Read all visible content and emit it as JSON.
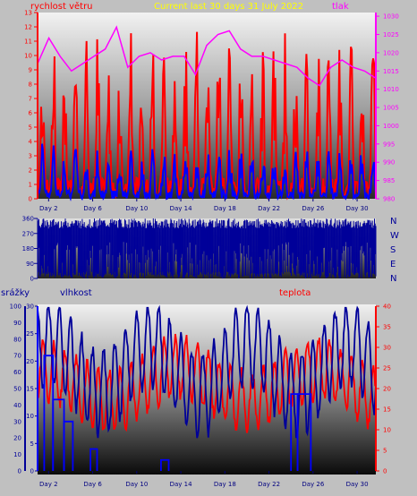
{
  "chart_data": [
    {
      "type": "line",
      "title": "Current last 30 days 31 July 2022",
      "left_axis_label": "rychlost větru",
      "right_axis_label": "tlak",
      "left_ticks": [
        "0",
        "1",
        "2",
        "3",
        "4",
        "5",
        "6",
        "7",
        "8",
        "9",
        "10",
        "11",
        "12",
        "13"
      ],
      "right_ticks": [
        "980",
        "985",
        "990",
        "995",
        "1000",
        "1005",
        "1010",
        "1015",
        "1020",
        "1025",
        "1030"
      ],
      "ylim_left": [
        0,
        13
      ],
      "ylim_right": [
        980,
        1031
      ],
      "x_ticks": [
        "Day 2",
        "Day 6",
        "Day 10",
        "Day 14",
        "Day 18",
        "Day 22",
        "Day 26",
        "Day 30"
      ],
      "series": [
        {
          "name": "rychlost větru",
          "color": "#ff0000"
        },
        {
          "name": "",
          "color": "#0000ff"
        },
        {
          "name": "tlak",
          "color": "#ff00ff",
          "values": [
            1017,
            1024,
            1019,
            1015,
            1017,
            1019,
            1021,
            1027,
            1016,
            1019,
            1020,
            1018,
            1019,
            1019,
            1014,
            1022,
            1025,
            1026,
            1021,
            1019,
            1019,
            1018,
            1017,
            1016,
            1013,
            1011,
            1016,
            1018,
            1016,
            1015,
            1013
          ]
        }
      ],
      "legend": "none",
      "grid": false
    },
    {
      "type": "line",
      "title": "",
      "right_labels": [
        "N",
        "W",
        "S",
        "E",
        "N"
      ],
      "left_ticks": [
        "0",
        "90",
        "180",
        "270",
        "360"
      ],
      "ylim": [
        0,
        360
      ],
      "x_ticks": [],
      "series": [
        {
          "name": "",
          "color": "#000099"
        }
      ],
      "grid": false
    },
    {
      "type": "line",
      "title": "",
      "left_axis_label_1": "srážky",
      "left_axis_label_2": "vlhkost",
      "right_axis_label": "teplota",
      "left_ticks_1": [
        "0",
        "10",
        "20",
        "30",
        "40",
        "50",
        "60",
        "70",
        "80",
        "90",
        "100"
      ],
      "left_ticks_2": [
        "0",
        "5",
        "10",
        "15",
        "20",
        "25",
        "30"
      ],
      "right_ticks": [
        "0",
        "5",
        "10",
        "15",
        "20",
        "25",
        "30",
        "35",
        "40"
      ],
      "ylim_left": [
        0,
        100
      ],
      "ylim_right": [
        0,
        40
      ],
      "x_ticks": [
        "Day 2",
        "Day 6",
        "Day 10",
        "Day 14",
        "Day 18",
        "Day 22",
        "Day 26",
        "Day 30"
      ],
      "series": [
        {
          "name": "vlhkost",
          "color": "#000099"
        },
        {
          "name": "teplota",
          "color": "#ff0000"
        },
        {
          "name": "srážky",
          "color": "#0000ff"
        }
      ],
      "grid": false
    }
  ]
}
